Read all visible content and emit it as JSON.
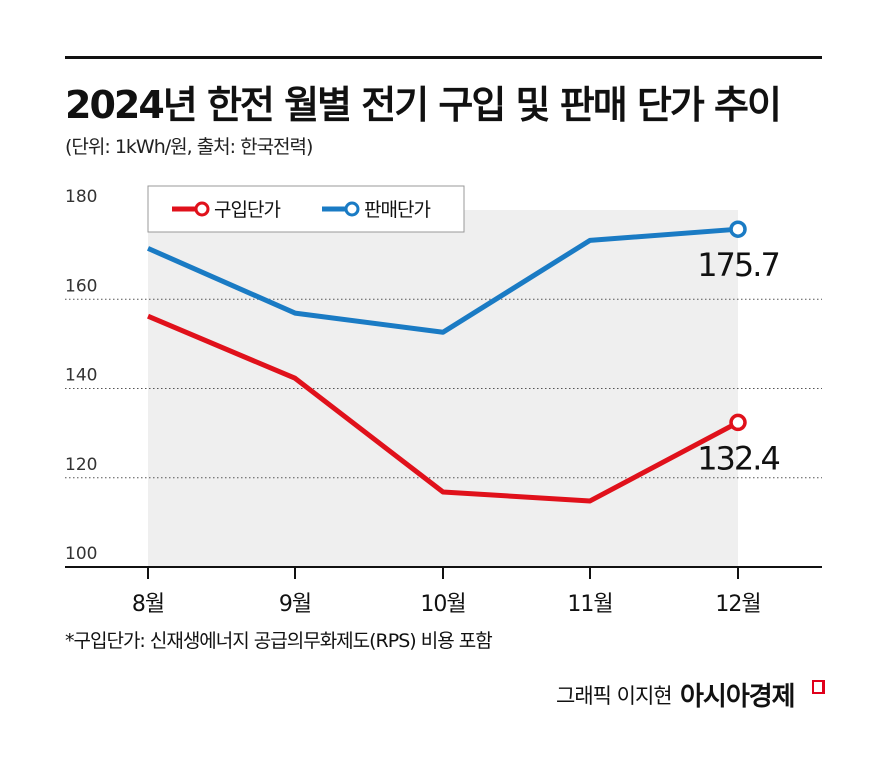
{
  "title": "2024년 한전 월별 전기 구입 및 판매 단가 추이",
  "subtitle": "(단위: 1kWh/원, 출처: 한국전력)",
  "note": "*구입단가: 신재생에너지 공급의무화제도(RPS) 비용 포함",
  "credit": "그래픽 이지현",
  "logo": "아시아경제",
  "chart_data": {
    "type": "line",
    "categories": [
      "8월",
      "9월",
      "10월",
      "11월",
      "12월"
    ],
    "ylim": [
      100,
      180
    ],
    "yticks": [
      100,
      120,
      140,
      160,
      180
    ],
    "grid": "dotted horizontal",
    "legend_placement": "top-left",
    "series": [
      {
        "name": "구입단가",
        "color": "#e0111b",
        "values": [
          156.2,
          142.3,
          116.8,
          114.8,
          132.4
        ],
        "last_label": "132.4"
      },
      {
        "name": "판매단가",
        "color": "#1a7bc4",
        "values": [
          171.4,
          156.9,
          152.6,
          173.2,
          175.7
        ],
        "last_label": "175.7"
      }
    ]
  }
}
